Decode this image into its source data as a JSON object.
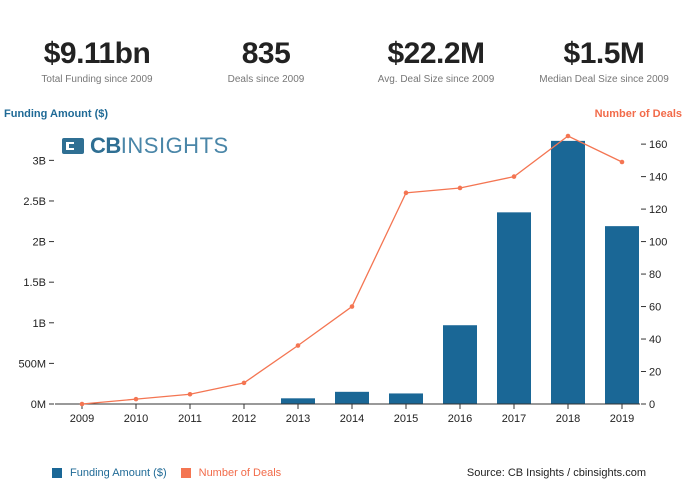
{
  "stats": [
    {
      "value": "$9.11bn",
      "label": "Total Funding since 2009"
    },
    {
      "value": "835",
      "label": "Deals since 2009"
    },
    {
      "value": "$22.2M",
      "label": "Avg. Deal Size since 2009"
    },
    {
      "value": "$1.5M",
      "label": "Median Deal Size since 2009"
    }
  ],
  "logo": {
    "cb": "CB",
    "insights": "INSIGHTS"
  },
  "source": "Source: CB Insights / cbinsights.com",
  "colors": {
    "bar": "#1a6796",
    "line": "#f47552",
    "left_axis_title": "#1f6a96",
    "right_axis_title": "#f26b4a"
  },
  "chart_data": {
    "type": "bar",
    "categories": [
      "2009",
      "2010",
      "2011",
      "2012",
      "2013",
      "2014",
      "2015",
      "2016",
      "2017",
      "2018",
      "2019"
    ],
    "series": [
      {
        "name": "Funding Amount ($)",
        "type": "bar",
        "axis": "left",
        "values": [
          0,
          0,
          0,
          0,
          0.07,
          0.15,
          0.13,
          0.97,
          2.36,
          3.24,
          2.19
        ]
      },
      {
        "name": "Number of Deals",
        "type": "line",
        "axis": "right",
        "values": [
          0,
          3,
          6,
          13,
          36,
          60,
          130,
          133,
          140,
          165,
          149
        ]
      }
    ],
    "ylabel": "Funding Amount ($)",
    "ylabel_right": "Number of Deals",
    "ylim": [
      0,
      3.3
    ],
    "ylim_right": [
      0,
      165
    ],
    "yticks": [
      {
        "value": 0,
        "label": "0M"
      },
      {
        "value": 0.5,
        "label": "500M"
      },
      {
        "value": 1,
        "label": "1B"
      },
      {
        "value": 1.5,
        "label": "1.5B"
      },
      {
        "value": 2,
        "label": "2B"
      },
      {
        "value": 2.5,
        "label": "2.5B"
      },
      {
        "value": 3,
        "label": "3B"
      }
    ],
    "yticks_right": [
      {
        "value": 0,
        "label": "0"
      },
      {
        "value": 20,
        "label": "20"
      },
      {
        "value": 40,
        "label": "40"
      },
      {
        "value": 60,
        "label": "60"
      },
      {
        "value": 80,
        "label": "80"
      },
      {
        "value": 100,
        "label": "100"
      },
      {
        "value": 120,
        "label": "120"
      },
      {
        "value": 140,
        "label": "140"
      },
      {
        "value": 160,
        "label": "160"
      }
    ],
    "legend": {
      "position": "bottom-left"
    },
    "grid": false
  }
}
